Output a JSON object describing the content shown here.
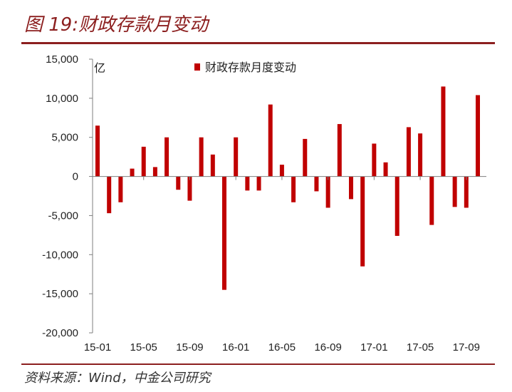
{
  "title": "图 19:财政存款月变动",
  "source": "资料来源：Wind，中金公司研究",
  "colors": {
    "accent": "#8c1f1f",
    "bar": "#c00000"
  },
  "chart_data": {
    "type": "bar",
    "ylabel": "亿",
    "ylim": [
      -20000,
      15000
    ],
    "yticks": [
      15000,
      10000,
      5000,
      0,
      -5000,
      -10000,
      -15000,
      -20000
    ],
    "ytick_labels": [
      "15,000",
      "10,000",
      "5,000",
      "0",
      "-5,000",
      "-10,000",
      "-15,000",
      "-20,000"
    ],
    "legend_position": "top",
    "grid": false,
    "categories": [
      "15-01",
      "15-02",
      "15-03",
      "15-04",
      "15-05",
      "15-06",
      "15-07",
      "15-08",
      "15-09",
      "15-10",
      "15-11",
      "15-12",
      "16-01",
      "16-02",
      "16-03",
      "16-04",
      "16-05",
      "16-06",
      "16-07",
      "16-08",
      "16-09",
      "16-10",
      "16-11",
      "16-12",
      "17-01",
      "17-02",
      "17-03",
      "17-04",
      "17-05",
      "17-06",
      "17-07",
      "17-08",
      "17-09",
      "17-10"
    ],
    "xtick_labels": [
      "15-01",
      "15-05",
      "15-09",
      "16-01",
      "16-05",
      "16-09",
      "17-01",
      "17-05",
      "17-09"
    ],
    "series": [
      {
        "name": "财政存款月度变动",
        "values": [
          6500,
          -4700,
          -3300,
          1000,
          3800,
          1200,
          5000,
          -1700,
          -3100,
          5000,
          2800,
          -14500,
          5000,
          -1800,
          -1800,
          9200,
          1500,
          -3300,
          4800,
          -1900,
          -4000,
          6700,
          -2900,
          -11500,
          4200,
          1800,
          -7600,
          6300,
          5500,
          -6200,
          11500,
          -3900,
          -4000,
          10400
        ]
      }
    ]
  }
}
